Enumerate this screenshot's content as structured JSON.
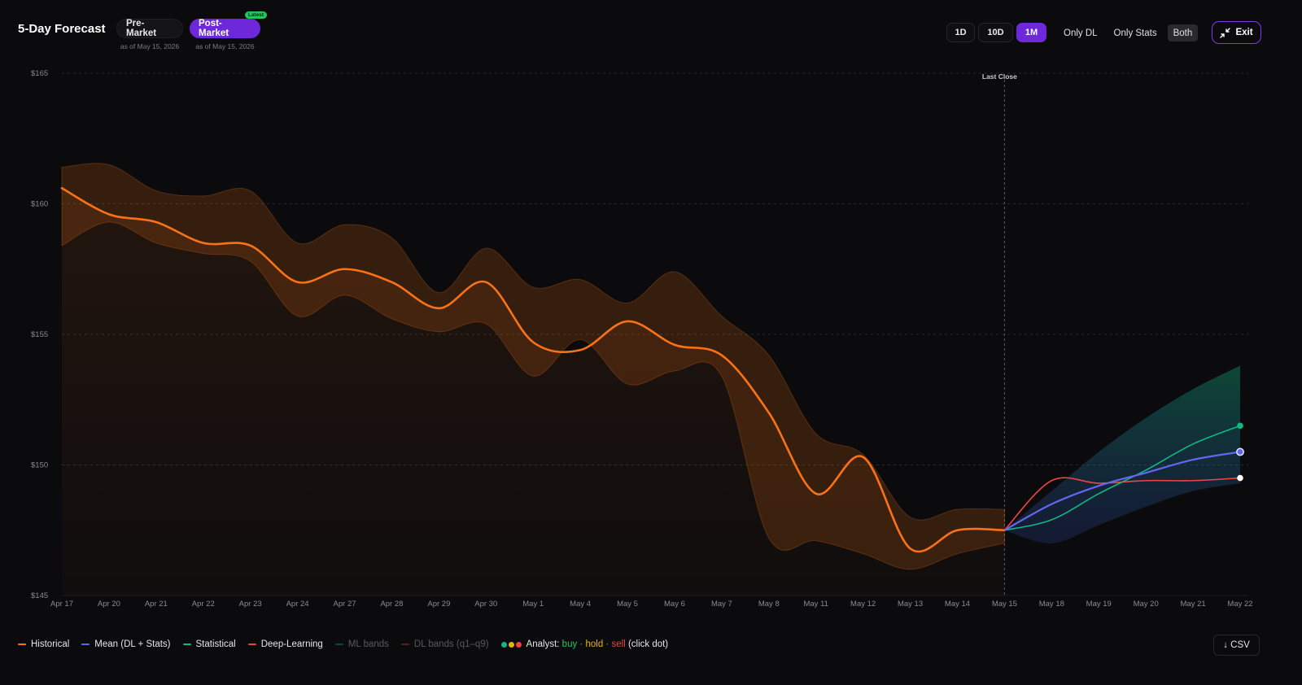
{
  "header": {
    "title": "5-Day Forecast",
    "sessions": [
      {
        "label": "Pre-Market",
        "as_of": "as of May 15, 2026",
        "active": false
      },
      {
        "label": "Post-Market",
        "as_of": "as of May 15, 2026",
        "active": true,
        "badge": "Latest"
      }
    ],
    "ranges": [
      {
        "label": "1D",
        "active": false
      },
      {
        "label": "10D",
        "active": false
      },
      {
        "label": "1M",
        "active": true
      }
    ],
    "modes": [
      {
        "label": "Only DL",
        "active": false
      },
      {
        "label": "Only Stats",
        "active": false
      },
      {
        "label": "Both",
        "active": true
      }
    ],
    "exit_label": "Exit",
    "exit_icon": "collapse-icon"
  },
  "colors": {
    "historical": "#f97316",
    "mean": "#6366f1",
    "statistical": "#10b981",
    "deep_learning": "#ef4444",
    "accent": "#6d28d9",
    "buy": "#22c55e",
    "hold": "#eab308",
    "sell": "#ef4444"
  },
  "chart_data": {
    "type": "line",
    "title": "",
    "xlabel": "",
    "ylabel": "",
    "y_axis": {
      "min": 145,
      "max": 165,
      "ticks": [
        "$145",
        "$150",
        "$155",
        "$160",
        "$165"
      ]
    },
    "x_axis_labels": [
      "Apr 17",
      "Apr 20",
      "Apr 21",
      "Apr 22",
      "Apr 23",
      "Apr 24",
      "Apr 27",
      "Apr 28",
      "Apr 29",
      "Apr 30",
      "May 1",
      "May 4",
      "May 5",
      "May 6",
      "May 7",
      "May 8",
      "May 11",
      "May 12",
      "May 13",
      "May 14",
      "May 15",
      "May 18",
      "May 19",
      "May 20",
      "May 21",
      "May 22"
    ],
    "grid": "horizontal dashed",
    "marker": {
      "label": "Last Close",
      "x": "May 15"
    },
    "series": [
      {
        "key": "historical",
        "name": "Historical",
        "values": [
          160.6,
          159.6,
          159.3,
          158.5,
          158.4,
          157.0,
          157.5,
          157.0,
          156.0,
          157.0,
          154.7,
          154.4,
          155.5,
          154.6,
          154.2,
          152.0,
          148.9,
          150.3,
          146.8,
          147.5,
          147.5
        ]
      },
      {
        "key": "historical_band_upper",
        "name": "Historical band upper",
        "values": [
          161.4,
          161.5,
          160.5,
          160.3,
          160.5,
          158.5,
          159.2,
          158.7,
          156.6,
          158.3,
          156.8,
          157.1,
          156.2,
          157.4,
          155.7,
          154.2,
          151.2,
          150.4,
          148.0,
          148.3,
          148.3
        ]
      },
      {
        "key": "historical_band_lower",
        "name": "Historical band lower",
        "values": [
          158.4,
          159.3,
          158.5,
          158.1,
          157.8,
          155.7,
          156.5,
          155.6,
          155.1,
          155.4,
          153.4,
          154.8,
          153.1,
          153.6,
          153.4,
          147.2,
          147.1,
          146.6,
          146.0,
          146.6,
          147.0
        ]
      },
      {
        "key": "mean",
        "name": "Mean (DL + Stats)",
        "values": [
          147.5,
          148.5,
          149.2,
          149.7,
          150.2,
          150.5
        ]
      },
      {
        "key": "statistical",
        "name": "Statistical",
        "values": [
          147.5,
          147.9,
          148.9,
          149.8,
          150.8,
          151.5
        ]
      },
      {
        "key": "deep_learning",
        "name": "Deep-Learning",
        "values": [
          147.5,
          149.4,
          149.3,
          149.4,
          149.4,
          149.5
        ]
      },
      {
        "key": "forecast_band_upper",
        "name": "Forecast band upper",
        "values": [
          147.5,
          149.0,
          150.5,
          151.8,
          152.9,
          153.8
        ]
      },
      {
        "key": "forecast_band_lower",
        "name": "Forecast band lower",
        "values": [
          147.5,
          147.0,
          147.7,
          148.4,
          149.0,
          149.3
        ]
      }
    ],
    "forecast_start": "May 15"
  },
  "legend": {
    "items": [
      {
        "label": "Historical",
        "color": "#f97316",
        "dim": false
      },
      {
        "label": "Mean (DL + Stats)",
        "color": "#6366f1",
        "dim": false
      },
      {
        "label": "Statistical",
        "color": "#10b981",
        "dim": false
      },
      {
        "label": "Deep-Learning",
        "color": "#ef4444",
        "dim": false
      },
      {
        "label": "ML bands",
        "color": "#10b981",
        "dim": true
      },
      {
        "label": "DL bands (q1–q9)",
        "color": "#ef4444",
        "dim": true
      }
    ],
    "analyst": {
      "prefix": "Analyst:",
      "buy": "buy",
      "sep1": "·",
      "hold": "hold",
      "sep2": "·",
      "sell": "sell",
      "suffix": "(click dot)"
    }
  },
  "csv_label": "↓ CSV"
}
